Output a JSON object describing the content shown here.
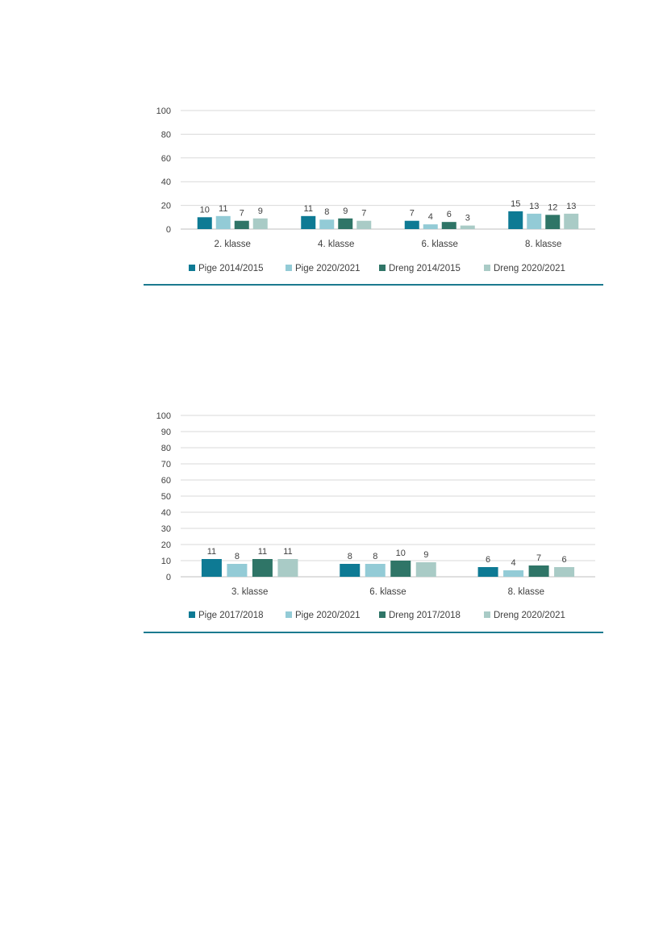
{
  "colors": {
    "series": [
      "#0e7a94",
      "#93cbd6",
      "#2f7567",
      "#a9cbc6"
    ],
    "grid": "#d9d9d9",
    "rule": "#1b7a8f",
    "text": "#404040"
  },
  "chart_data": [
    {
      "type": "bar",
      "title": "",
      "xlabel": "",
      "ylabel": "",
      "ylim": [
        0,
        100
      ],
      "yticks": [
        0,
        20,
        40,
        60,
        80,
        100
      ],
      "grid": true,
      "legend_position": "bottom",
      "categories": [
        "2. klasse",
        "4. klasse",
        "6. klasse",
        "8. klasse"
      ],
      "series": [
        {
          "name": "Pige 2014/2015",
          "values": [
            10,
            11,
            7,
            15
          ]
        },
        {
          "name": "Pige 2020/2021",
          "values": [
            11,
            8,
            4,
            13
          ]
        },
        {
          "name": "Dreng 2014/2015",
          "values": [
            7,
            9,
            6,
            12
          ]
        },
        {
          "name": "Dreng 2020/2021",
          "values": [
            9,
            7,
            3,
            13
          ]
        }
      ]
    },
    {
      "type": "bar",
      "title": "",
      "xlabel": "",
      "ylabel": "",
      "ylim": [
        0,
        100
      ],
      "yticks": [
        0,
        10,
        20,
        30,
        40,
        50,
        60,
        70,
        80,
        90,
        100
      ],
      "grid": true,
      "legend_position": "bottom",
      "categories": [
        "3. klasse",
        "6. klasse",
        "8. klasse"
      ],
      "series": [
        {
          "name": "Pige 2017/2018",
          "values": [
            11,
            8,
            6
          ]
        },
        {
          "name": "Pige 2020/2021",
          "values": [
            8,
            8,
            4
          ]
        },
        {
          "name": "Dreng 2017/2018",
          "values": [
            11,
            10,
            7
          ]
        },
        {
          "name": "Dreng 2020/2021",
          "values": [
            11,
            9,
            6
          ]
        }
      ]
    }
  ]
}
